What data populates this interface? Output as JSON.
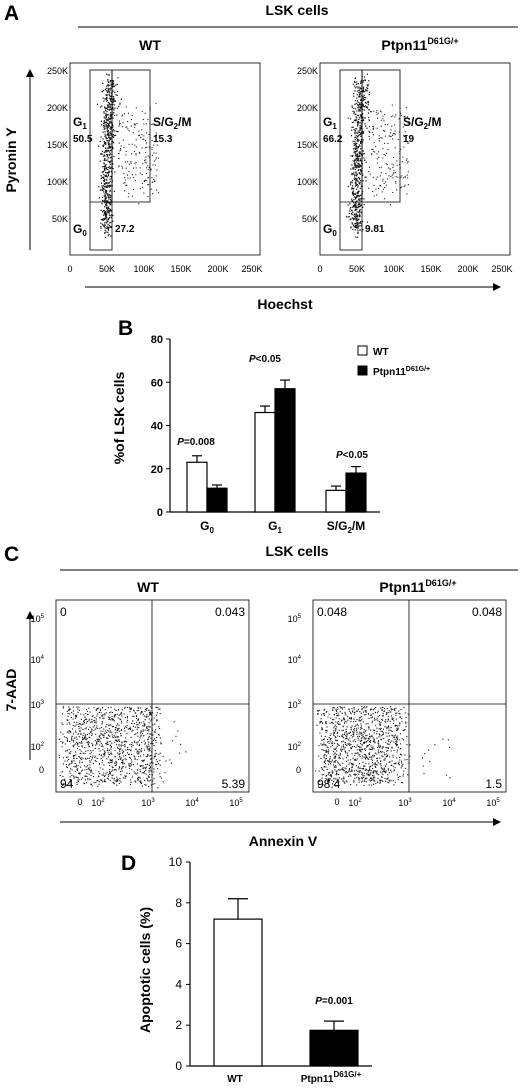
{
  "panel_a": {
    "letter": "A",
    "header": "LSK cells",
    "plots": [
      {
        "title": "WT",
        "title_sup": "",
        "g1": "50.5",
        "sg2m": "15.3",
        "g0": "27.2"
      },
      {
        "title": "Ptpn11",
        "title_sup": "D61G/+",
        "g1": "66.2",
        "sg2m": "19",
        "g0": "9.81"
      }
    ],
    "gate_g1": "G",
    "gate_g1_sub": "1",
    "gate_g0": "G",
    "gate_g0_sub": "0",
    "gate_s_a": "S/G",
    "gate_s_sub": "2",
    "gate_s_b": "/M",
    "ylabel": "Pyronin Y",
    "xlabel": "Hoechst",
    "xticks": [
      "0",
      "50K",
      "100K",
      "150K",
      "200K",
      "250K"
    ],
    "yticks": [
      "250K",
      "200K",
      "150K",
      "100K",
      "50K"
    ]
  },
  "panel_b": {
    "letter": "B",
    "legend_wt": "WT",
    "legend_mut": "Ptpn11",
    "legend_mut_sup": "D61G/+",
    "cat_g0": "G",
    "cat_g0_sub": "0",
    "cat_g1": "G",
    "cat_g1_sub": "1",
    "cat_s_a": "S/G",
    "cat_s_sub": "2",
    "cat_s_b": "/M",
    "p_g0": "=0.008",
    "p_g1": "<0.05",
    "p_s": "<0.05",
    "p_letter": "P"
  },
  "panel_c": {
    "letter": "C",
    "header": "LSK cells",
    "plots": [
      {
        "title": "WT",
        "title_sup": "",
        "ul": "0",
        "ur": "0.043",
        "ll": "94",
        "lr": "5.39"
      },
      {
        "title": "Ptpn11",
        "title_sup": "D61G/+",
        "ul": "0.048",
        "ur": "0.048",
        "ll": "98.4",
        "lr": "1.5"
      }
    ],
    "ylabel": "7-AAD",
    "xlabel": "Annexin V",
    "tick_base": "10",
    "tick_zero": "0"
  },
  "panel_d": {
    "letter": "D",
    "p_letter": "P",
    "p_value": "=0.001",
    "wt_label": "WT",
    "mut_label": "Ptpn11",
    "mut_sup": "D61G/+"
  },
  "chart_data": [
    {
      "type": "bar",
      "panel": "B",
      "categories": [
        "G0",
        "G1",
        "S/G2/M"
      ],
      "series": [
        {
          "name": "WT",
          "values": [
            23,
            46,
            10
          ],
          "errors": [
            3,
            3,
            2
          ],
          "color": "#ffffff"
        },
        {
          "name": "Ptpn11D61G/+",
          "values": [
            11,
            57,
            18
          ],
          "errors": [
            1.5,
            4,
            3
          ],
          "color": "#000000"
        }
      ],
      "ylabel": "%of LSK cells",
      "ylim": [
        0,
        80
      ],
      "yticks": [
        0,
        20,
        40,
        60,
        80
      ],
      "legend": "top-right",
      "grid": false
    },
    {
      "type": "bar",
      "panel": "D",
      "categories": [
        "WT",
        "Ptpn11D61G/+"
      ],
      "values": [
        7.2,
        1.75
      ],
      "errors": [
        1.0,
        0.45
      ],
      "colors": [
        "#ffffff",
        "#000000"
      ],
      "ylabel": "Apoptotic cells (%)",
      "ylim": [
        0,
        10
      ],
      "yticks": [
        0,
        2,
        4,
        6,
        8,
        10
      ],
      "grid": false
    }
  ]
}
